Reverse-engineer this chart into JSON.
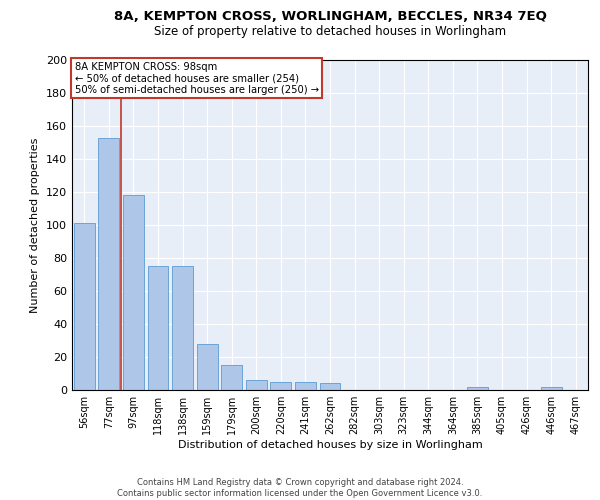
{
  "title1": "8A, KEMPTON CROSS, WORLINGHAM, BECCLES, NR34 7EQ",
  "title2": "Size of property relative to detached houses in Worlingham",
  "xlabel": "Distribution of detached houses by size in Worlingham",
  "ylabel": "Number of detached properties",
  "categories": [
    "56sqm",
    "77sqm",
    "97sqm",
    "118sqm",
    "138sqm",
    "159sqm",
    "179sqm",
    "200sqm",
    "220sqm",
    "241sqm",
    "262sqm",
    "282sqm",
    "303sqm",
    "323sqm",
    "344sqm",
    "364sqm",
    "385sqm",
    "405sqm",
    "426sqm",
    "446sqm",
    "467sqm"
  ],
  "values": [
    101,
    153,
    118,
    75,
    75,
    28,
    15,
    6,
    5,
    5,
    4,
    0,
    0,
    0,
    0,
    0,
    2,
    0,
    0,
    2,
    0
  ],
  "bar_color": "#aec6e8",
  "bar_edge_color": "#5b9bd5",
  "vline_x": 2.0,
  "vline_color": "#c0392b",
  "annotation_title": "8A KEMPTON CROSS: 98sqm",
  "annotation_line1": "← 50% of detached houses are smaller (254)",
  "annotation_line2": "50% of semi-detached houses are larger (250) →",
  "annotation_box_color": "white",
  "annotation_box_edge": "#c0392b",
  "ylim": [
    0,
    200
  ],
  "yticks": [
    0,
    20,
    40,
    60,
    80,
    100,
    120,
    140,
    160,
    180,
    200
  ],
  "bg_color": "#e8eef8",
  "grid_color": "white",
  "footer1": "Contains HM Land Registry data © Crown copyright and database right 2024.",
  "footer2": "Contains public sector information licensed under the Open Government Licence v3.0."
}
